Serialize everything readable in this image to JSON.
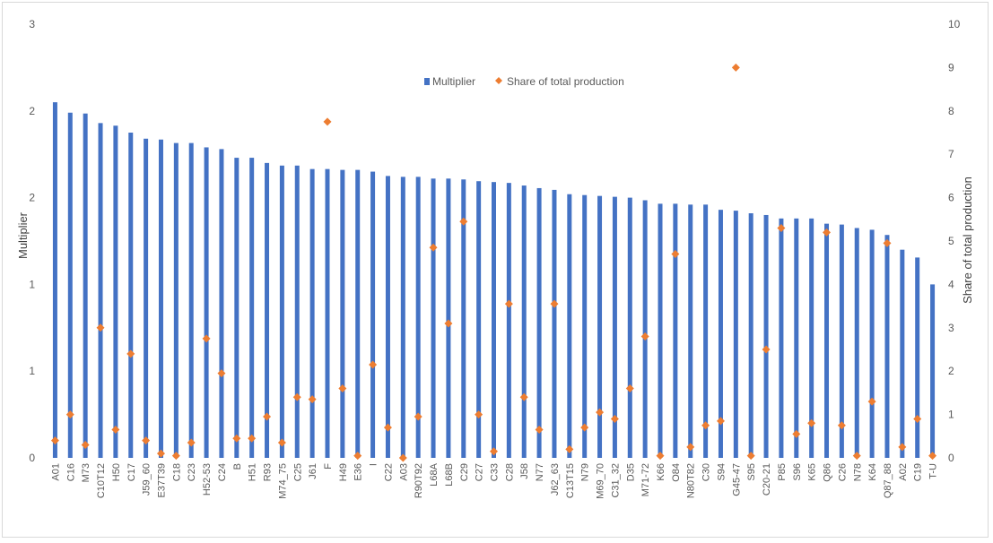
{
  "chart_data": {
    "type": "bar",
    "title": "",
    "ylabel": "Multiplier",
    "y2label": "Share of total production",
    "legend_position": "top",
    "grid": false,
    "categories": [
      "A01",
      "C16",
      "M73",
      "C10T12",
      "H50",
      "C17",
      "J59_60",
      "E37T39",
      "C18",
      "C23",
      "H52-53",
      "C24",
      "B",
      "H51",
      "R93",
      "M74_75",
      "C25",
      "J61",
      "F",
      "H49",
      "E36",
      "I",
      "C22",
      "A03",
      "R90T92",
      "L68A",
      "L68B",
      "C29",
      "C27",
      "C33",
      "C28",
      "J58",
      "N77",
      "J62_63",
      "C13T15",
      "N79",
      "M69_70",
      "C31_32",
      "D35",
      "M71-72",
      "K66",
      "O84",
      "N80T82",
      "C30",
      "S94",
      "G45-47",
      "S95",
      "C20-21",
      "P85",
      "S96",
      "K65",
      "Q86",
      "C26",
      "N78",
      "K64",
      "Q87_88",
      "A02",
      "C19",
      "T-U"
    ],
    "ylim": [
      0,
      2.5
    ],
    "y2lim": [
      0,
      10
    ],
    "left_tick_labels": [
      "0",
      "1",
      "1",
      "2",
      "2",
      "3"
    ],
    "right_tick_labels": [
      "0",
      "1",
      "2",
      "3",
      "4",
      "5",
      "6",
      "7",
      "8",
      "9",
      "10"
    ],
    "series": [
      {
        "name": "Multiplier",
        "type": "bar",
        "axis": "left",
        "color": "#4472c4",
        "values": [
          2.05,
          1.99,
          1.985,
          1.93,
          1.915,
          1.875,
          1.84,
          1.835,
          1.815,
          1.815,
          1.79,
          1.78,
          1.73,
          1.73,
          1.7,
          1.685,
          1.685,
          1.665,
          1.665,
          1.66,
          1.66,
          1.65,
          1.625,
          1.62,
          1.62,
          1.61,
          1.61,
          1.605,
          1.595,
          1.59,
          1.585,
          1.57,
          1.555,
          1.545,
          1.52,
          1.515,
          1.51,
          1.505,
          1.5,
          1.485,
          1.465,
          1.465,
          1.46,
          1.46,
          1.43,
          1.425,
          1.41,
          1.4,
          1.38,
          1.38,
          1.38,
          1.35,
          1.345,
          1.325,
          1.315,
          1.285,
          1.2,
          1.155,
          1.0
        ]
      },
      {
        "name": "Share of total production",
        "type": "scatter",
        "axis": "right",
        "color": "#ed7d31",
        "marker": "diamond",
        "values": [
          0.4,
          1.0,
          0.3,
          3.0,
          0.65,
          2.4,
          0.4,
          0.1,
          0.05,
          0.35,
          2.75,
          1.95,
          0.45,
          0.45,
          0.95,
          0.35,
          1.4,
          1.35,
          7.75,
          1.6,
          0.05,
          2.15,
          0.7,
          0.0,
          0.95,
          4.85,
          3.1,
          5.45,
          1.0,
          0.15,
          3.55,
          1.4,
          0.65,
          3.55,
          0.2,
          0.7,
          1.05,
          0.9,
          1.6,
          2.8,
          0.05,
          4.7,
          0.25,
          0.75,
          0.85,
          9.0,
          0.05,
          2.5,
          5.3,
          0.55,
          0.8,
          5.2,
          0.75,
          0.05,
          1.3,
          4.95,
          0.25,
          0.9,
          0.05
        ]
      }
    ]
  }
}
